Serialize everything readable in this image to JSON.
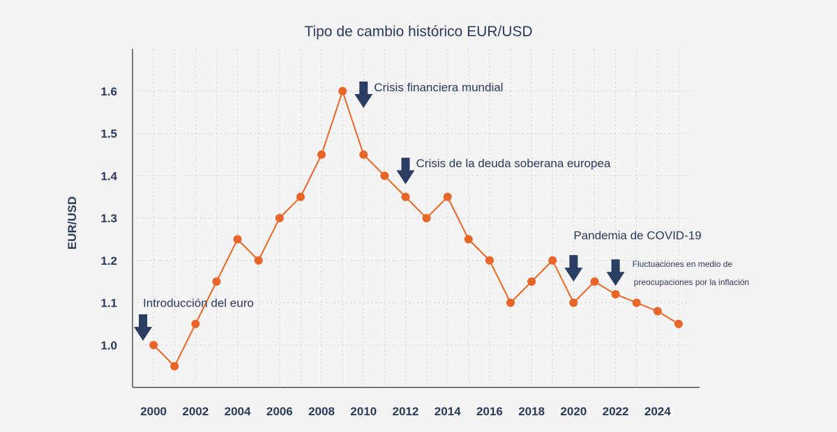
{
  "chart_data": {
    "type": "line",
    "title": "Tipo de cambio histórico EUR/USD",
    "xlabel": "",
    "ylabel": "EUR/USD",
    "xlim": [
      1999,
      2026
    ],
    "ylim": [
      0.9,
      1.7
    ],
    "yticks": [
      1.0,
      1.1,
      1.2,
      1.3,
      1.4,
      1.5,
      1.6
    ],
    "ytick_labels": [
      "1.0",
      "1.1",
      "1.2",
      "1.3",
      "1.4",
      "1.5",
      "1.6"
    ],
    "xticks": [
      2000,
      2002,
      2004,
      2006,
      2008,
      2010,
      2012,
      2014,
      2016,
      2018,
      2020,
      2022,
      2024
    ],
    "xtick_labels": [
      "2000",
      "2002",
      "2004",
      "2006",
      "2008",
      "2010",
      "2012",
      "2014",
      "2016",
      "2018",
      "2020",
      "2022",
      "2024"
    ],
    "grid": true,
    "series": [
      {
        "color": "#e8662a",
        "x": [
          2000,
          2001,
          2002,
          2003,
          2004,
          2005,
          2006,
          2007,
          2008,
          2009,
          2010,
          2011,
          2012,
          2013,
          2014,
          2015,
          2016,
          2017,
          2018,
          2019,
          2020,
          2021,
          2022,
          2023,
          2024,
          2025
        ],
        "y": [
          1.0,
          0.95,
          1.05,
          1.15,
          1.25,
          1.2,
          1.3,
          1.35,
          1.45,
          1.6,
          1.45,
          1.4,
          1.35,
          1.3,
          1.35,
          1.25,
          1.2,
          1.1,
          1.15,
          1.2,
          1.1,
          1.15,
          1.12,
          1.1,
          1.08,
          1.05
        ]
      }
    ],
    "annotations": [
      {
        "text": "Introducción del euro",
        "x": 1999.5,
        "y": 1.09,
        "arrow_x": 1999.5,
        "arrow_y": 1.01,
        "size": "normal"
      },
      {
        "text": "Crisis financiera mundial",
        "x": 2010.5,
        "y": 1.6,
        "arrow_x": 2010,
        "arrow_y": 1.56,
        "size": "normal"
      },
      {
        "text": "Crisis de la deuda soberana europea",
        "x": 2012.5,
        "y": 1.42,
        "arrow_x": 2012,
        "arrow_y": 1.38,
        "size": "normal"
      },
      {
        "text": "Pandemia de COVID-19",
        "x": 2020,
        "y": 1.25,
        "arrow_x": 2020,
        "arrow_y": 1.15,
        "size": "normal"
      },
      {
        "text": "Fluctuaciones en medio de",
        "text2": "preocupaciones por la inflación",
        "x": 2022.8,
        "y": 1.185,
        "arrow_x": 2022,
        "arrow_y": 1.14,
        "size": "small"
      }
    ]
  }
}
